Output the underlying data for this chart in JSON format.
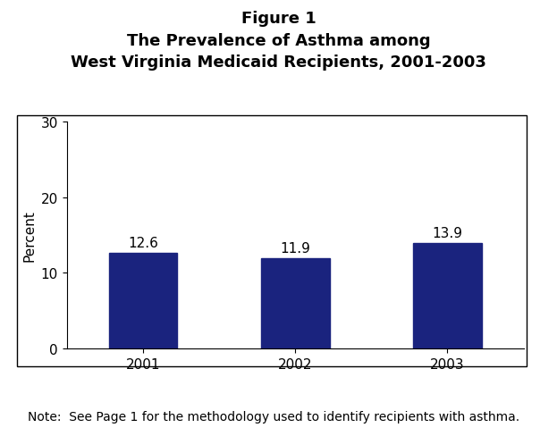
{
  "title_line1": "Figure 1",
  "title_line2": "The Prevalence of Asthma among",
  "title_line3": "West Virginia Medicaid Recipients, 2001-2003",
  "categories": [
    "2001",
    "2002",
    "2003"
  ],
  "values": [
    12.6,
    11.9,
    13.9
  ],
  "bar_color": "#1a237e",
  "ylabel": "Percent",
  "ylim": [
    0,
    30
  ],
  "yticks": [
    0,
    10,
    20,
    30
  ],
  "note": "Note:  See Page 1 for the methodology used to identify recipients with asthma.",
  "background_color": "#ffffff",
  "title_fontsize": 13,
  "label_fontsize": 11,
  "tick_fontsize": 11,
  "note_fontsize": 10,
  "bar_width": 0.45
}
